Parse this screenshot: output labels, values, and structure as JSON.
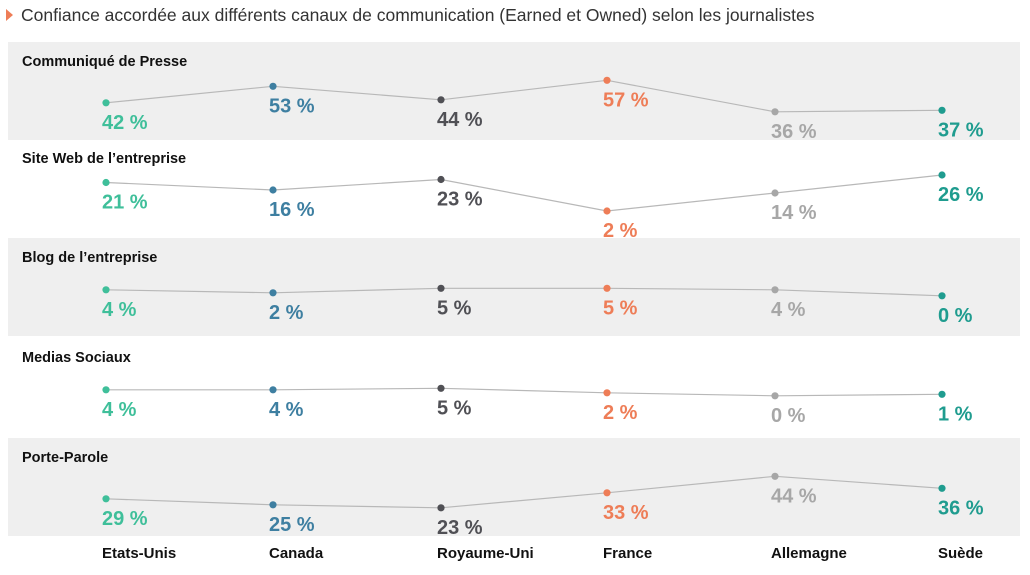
{
  "title": "Confiance accordée aux différents canaux de communication (Earned et Owned)  selon les journalistes",
  "colors": {
    "title_marker": "#ee7d57",
    "band": "#efefef",
    "line": "#b8b8b8",
    "countries": [
      "#3fbf9a",
      "#3e7fa1",
      "#505055",
      "#ee7d57",
      "#a7a7a7",
      "#1f9c8f"
    ]
  },
  "chart_data": {
    "type": "line",
    "categories": [
      "Etats-Unis",
      "Canada",
      "Royaume-Uni",
      "France",
      "Allemagne",
      "Suède"
    ],
    "unit": "%",
    "series": [
      {
        "name": "Communiqué de Presse",
        "values": [
          42,
          53,
          44,
          57,
          36,
          37
        ]
      },
      {
        "name": "Site Web de l’entreprise",
        "values": [
          21,
          16,
          23,
          2,
          14,
          26
        ]
      },
      {
        "name": "Blog de l’entreprise",
        "values": [
          4,
          2,
          5,
          5,
          4,
          0
        ]
      },
      {
        "name": "Medias Sociaux",
        "values": [
          4,
          4,
          5,
          2,
          0,
          1
        ]
      },
      {
        "name": "Porte-Parole",
        "values": [
          29,
          25,
          23,
          33,
          44,
          36
        ]
      }
    ],
    "value_labels": [
      [
        "42 %",
        "53 %",
        "44 %",
        "57 %",
        "36 %",
        "37 %"
      ],
      [
        "21 %",
        "16 %",
        "23 %",
        "2 %",
        "14 %",
        "26 %"
      ],
      [
        "4 %",
        "2 %",
        "5 %",
        "5 %",
        "4 %",
        "0 %"
      ],
      [
        "4 %",
        "4 %",
        "5 %",
        "2 %",
        "0 %",
        "1 %"
      ],
      [
        "29 %",
        "25 %",
        "23 %",
        "33 %",
        "44 %",
        "36 %"
      ]
    ]
  }
}
